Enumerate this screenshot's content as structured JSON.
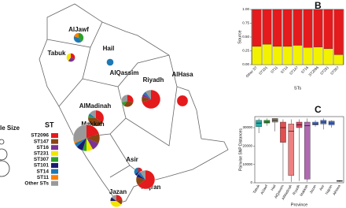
{
  "chart_data": [
    {
      "type": "map",
      "legend_title": "ST",
      "size_legend_title": "le Size",
      "st": [
        {
          "name": "ST2096",
          "color": "#e41a1c"
        },
        {
          "name": "ST147",
          "color": "#8b4513"
        },
        {
          "name": "ST16",
          "color": "#7b3294"
        },
        {
          "name": "ST231",
          "color": "#f2e600"
        },
        {
          "name": "ST307",
          "color": "#2ca02c"
        },
        {
          "name": "ST101",
          "color": "#1a1a6e"
        },
        {
          "name": "ST14",
          "color": "#1f78b4"
        },
        {
          "name": "ST11",
          "color": "#ff7f00"
        },
        {
          "name": "Other STs",
          "color": "#999999"
        }
      ],
      "pies": [
        {
          "region": "AlJawf",
          "size": 4,
          "values": [
            0,
            0,
            0,
            0,
            40,
            0,
            40,
            20,
            0
          ]
        },
        {
          "region": "Tabuk",
          "size": 3,
          "values": [
            30,
            0,
            30,
            40,
            0,
            0,
            0,
            0,
            0
          ]
        },
        {
          "region": "Hail",
          "size": 2,
          "values": [
            0,
            0,
            0,
            0,
            0,
            0,
            100,
            0,
            0
          ]
        },
        {
          "region": "AlQassim",
          "size": 6,
          "values": [
            30,
            30,
            0,
            0,
            10,
            0,
            0,
            0,
            30
          ]
        },
        {
          "region": "AlMadinah",
          "size": 10,
          "values": [
            35,
            40,
            0,
            0,
            5,
            0,
            5,
            0,
            15
          ]
        },
        {
          "region": "Riyadh",
          "size": 14,
          "values": [
            70,
            10,
            5,
            0,
            0,
            0,
            5,
            0,
            10
          ]
        },
        {
          "region": "AlHasa",
          "size": 5,
          "values": [
            100,
            0,
            0,
            0,
            0,
            0,
            0,
            0,
            0
          ]
        },
        {
          "region": "Makkah",
          "size": 28,
          "values": [
            20,
            12,
            10,
            8,
            5,
            8,
            5,
            2,
            30
          ]
        },
        {
          "region": "Asir",
          "size": 3,
          "values": [
            35,
            0,
            0,
            0,
            0,
            30,
            35,
            0,
            0
          ]
        },
        {
          "region": "Najran",
          "size": 14,
          "values": [
            65,
            15,
            0,
            0,
            0,
            5,
            5,
            0,
            10
          ]
        },
        {
          "region": "Jazan",
          "size": 6,
          "values": [
            20,
            15,
            0,
            40,
            0,
            10,
            0,
            0,
            15
          ]
        }
      ]
    },
    {
      "type": "stacked_bar",
      "panel": "B",
      "ylabel": "Source",
      "xlabel": "STs",
      "categories": [
        "Other ST",
        "ST101",
        "ST11",
        "ST14",
        "ST147",
        "ST16",
        "ST2096",
        "ST231",
        "ST307"
      ],
      "series": [
        {
          "color": "#f2f200",
          "values": [
            0.33,
            0.37,
            0.33,
            0.33,
            0.35,
            0.31,
            0.32,
            0.29,
            0.18
          ]
        },
        {
          "color": "#e41a1c",
          "values": [
            0.67,
            0.63,
            0.67,
            0.67,
            0.65,
            0.69,
            0.68,
            0.71,
            0.82
          ]
        }
      ],
      "ylim": [
        0,
        1
      ],
      "yticks": [
        {
          "value": 0,
          "label": "0.00"
        },
        {
          "value": 0.25,
          "label": "0.25"
        },
        {
          "value": 0.5,
          "label": "0.50"
        },
        {
          "value": 0.75,
          "label": "0.75"
        },
        {
          "value": 1,
          "label": "1.00"
        }
      ]
    },
    {
      "type": "box",
      "panel": "C",
      "ylabel": "Pairwise SNP Distances",
      "xlabel": "Province",
      "categories": [
        "Tabuk",
        "AlJawf",
        "Hail",
        "AlQassim",
        "AlMadinah",
        "Riyadh",
        "Makkah",
        "Jazan",
        "Asir",
        "Najran",
        "AlHasa"
      ],
      "colors": [
        "#20b2aa",
        "#2ca02c",
        "#8b7d6b",
        "#e05050",
        "#f08080",
        "#e04060",
        "#b06ab0",
        "#4a6fd0",
        "#4a6fd0",
        "#4a6fd0",
        "#888888"
      ],
      "boxes": [
        [
          27000,
          30500,
          32500,
          34000,
          35000
        ],
        [
          31000,
          32500,
          33000,
          34000,
          35000
        ],
        [
          28000,
          33000,
          34000,
          35000,
          35000
        ],
        [
          1000,
          22000,
          30000,
          33000,
          34500
        ],
        [
          500,
          4000,
          28000,
          32000,
          34500
        ],
        [
          1000,
          30000,
          31500,
          33000,
          34500
        ],
        [
          500,
          2000,
          31000,
          33000,
          35000
        ],
        [
          30500,
          31500,
          32000,
          33000,
          34000
        ],
        [
          29000,
          32000,
          33000,
          34000,
          35000
        ],
        [
          30000,
          31500,
          32500,
          33500,
          34000
        ],
        [
          500,
          800,
          1000,
          1200,
          1500
        ]
      ],
      "ylim": [
        0,
        36000
      ],
      "yticks": [
        0,
        10000,
        20000,
        30000
      ]
    }
  ]
}
